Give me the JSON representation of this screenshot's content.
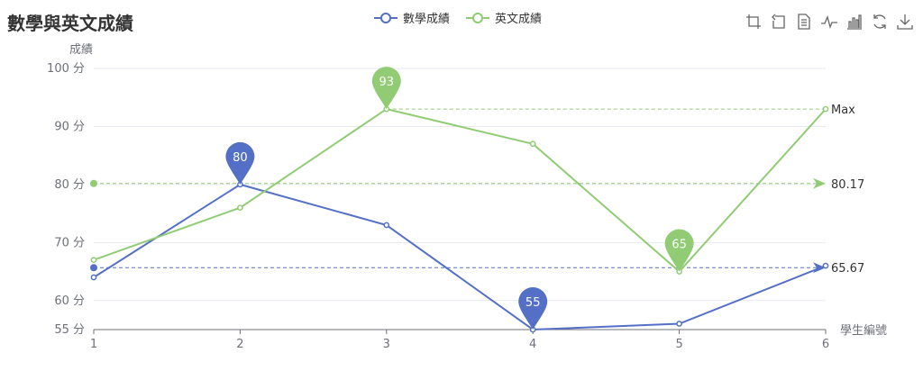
{
  "chart_data": {
    "type": "line",
    "title": "數學與英文成績",
    "xlabel": "學生編號",
    "ylabel": "成績",
    "categories": [
      "1",
      "2",
      "3",
      "4",
      "5",
      "6"
    ],
    "ylim": [
      55,
      100
    ],
    "yticks": [
      "55 分",
      "60 分",
      "70 分",
      "80 分",
      "90 分",
      "100 分"
    ],
    "ytick_values": [
      55,
      60,
      70,
      80,
      90,
      100
    ],
    "series": [
      {
        "name": "數學成績",
        "color": "#5470c6",
        "values": [
          64,
          80,
          73,
          55,
          56,
          66
        ],
        "markpoints": [
          {
            "label": "80",
            "index": 1
          },
          {
            "label": "55",
            "index": 3
          }
        ],
        "markline": {
          "label": "65.67",
          "value": 65.67
        }
      },
      {
        "name": "英文成績",
        "color": "#91cc75",
        "values": [
          67,
          76,
          93,
          87,
          65,
          93
        ],
        "markpoints": [
          {
            "label": "93",
            "index": 2
          },
          {
            "label": "65",
            "index": 4
          }
        ],
        "markline": {
          "label": "80.17",
          "value": 80.17
        },
        "maxline": {
          "label": "Max",
          "value": 93
        }
      }
    ],
    "grid": true,
    "legend_position": "top-center"
  },
  "toolbox": [
    "zoom-icon",
    "zoom-reset-icon",
    "data-view-icon",
    "line-chart-icon",
    "bar-chart-icon",
    "restore-icon",
    "save-image-icon"
  ]
}
